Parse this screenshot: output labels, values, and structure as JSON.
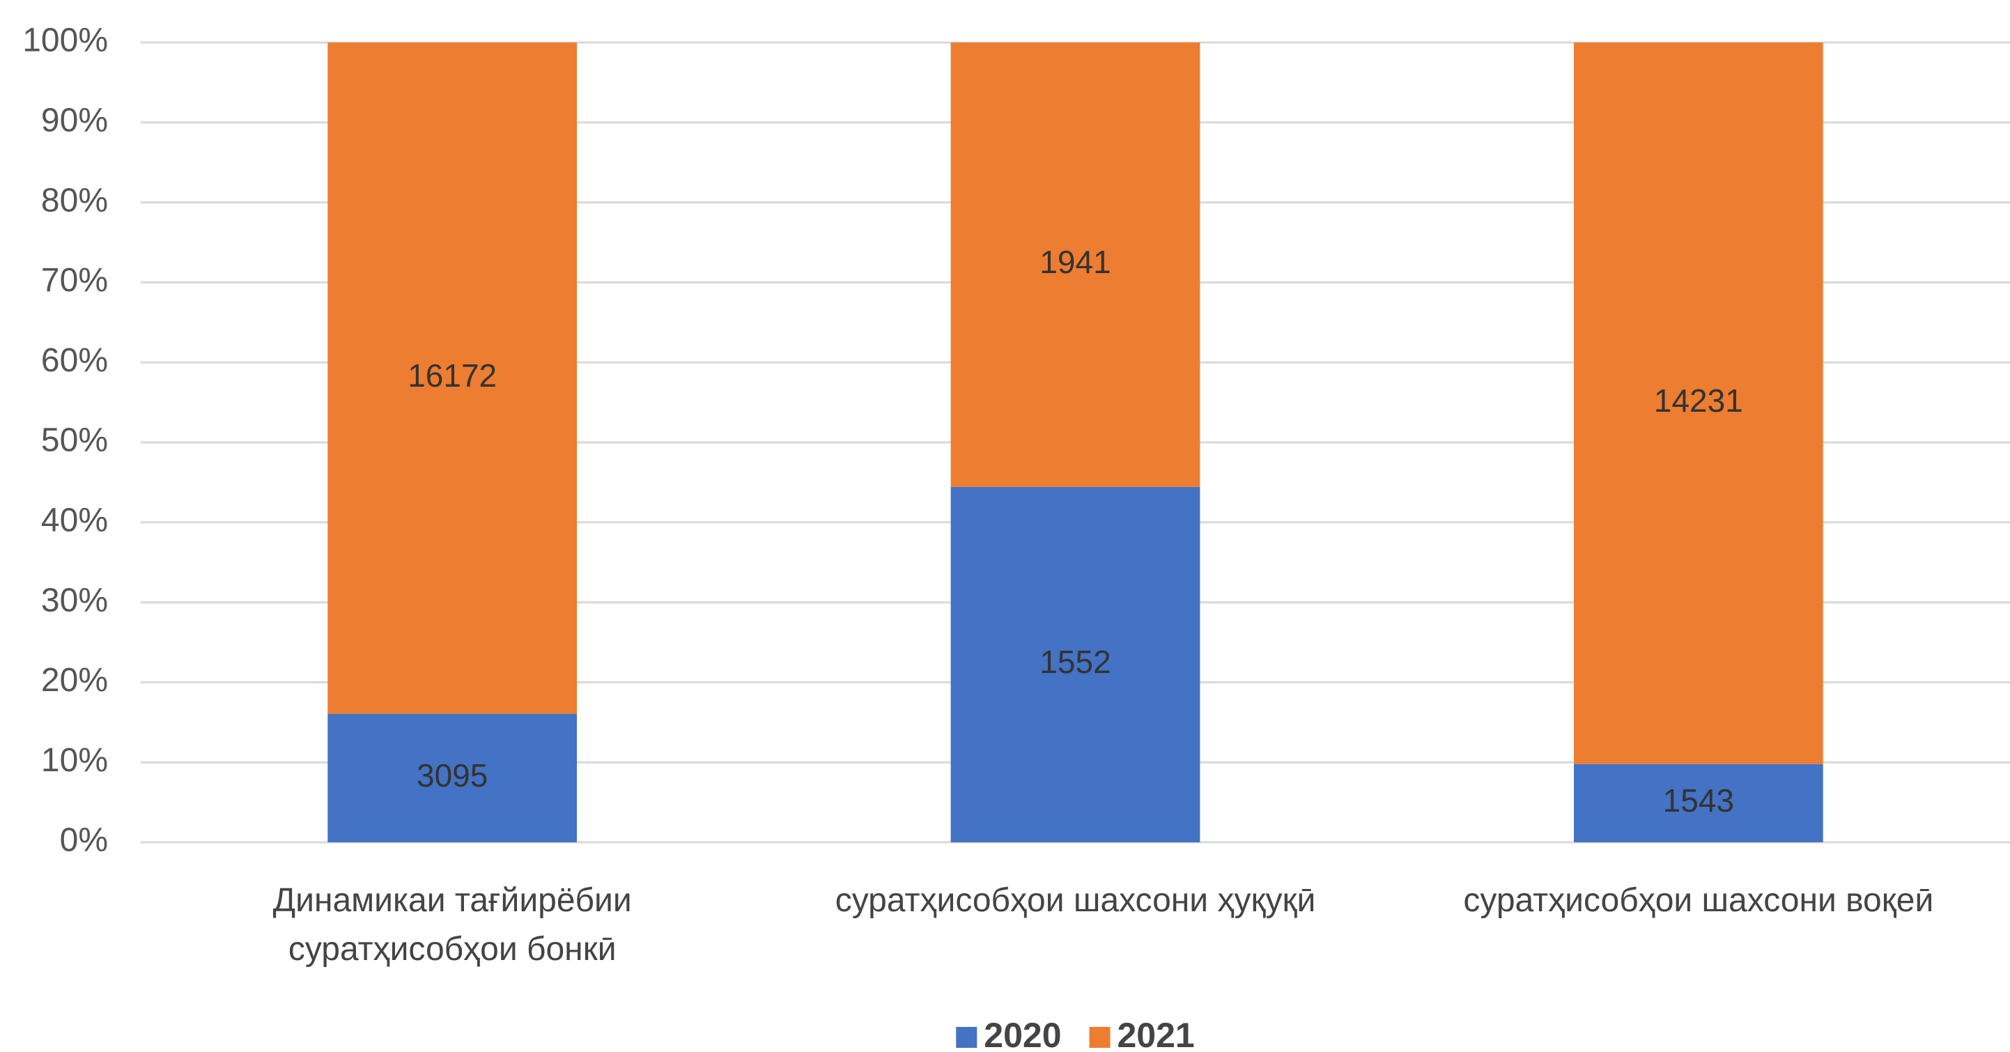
{
  "chart_data": {
    "type": "bar",
    "stacking": "percent",
    "categories": [
      "Динамикаи тағйирёбии суратҳисобҳои бонкӣ",
      "суратҳисобҳои шахсони ҳуқуқӣ",
      "суратҳисобҳои шахсони воқеӣ"
    ],
    "series": [
      {
        "name": "2020",
        "color": "#4472c4",
        "values": [
          3095,
          1552,
          1543
        ]
      },
      {
        "name": "2021",
        "color": "#ed7d31",
        "values": [
          16172,
          1941,
          14231
        ]
      }
    ],
    "ylim": [
      0,
      100
    ],
    "yticks": [
      {
        "value": 0,
        "label": "0%"
      },
      {
        "value": 10,
        "label": "10%"
      },
      {
        "value": 20,
        "label": "20%"
      },
      {
        "value": 30,
        "label": "30%"
      },
      {
        "value": 40,
        "label": "40%"
      },
      {
        "value": 50,
        "label": "50%"
      },
      {
        "value": 60,
        "label": "60%"
      },
      {
        "value": 70,
        "label": "70%"
      },
      {
        "value": 80,
        "label": "80%"
      },
      {
        "value": 90,
        "label": "90%"
      },
      {
        "value": 100,
        "label": "100%"
      }
    ],
    "grid": true,
    "legend": "bottom"
  }
}
